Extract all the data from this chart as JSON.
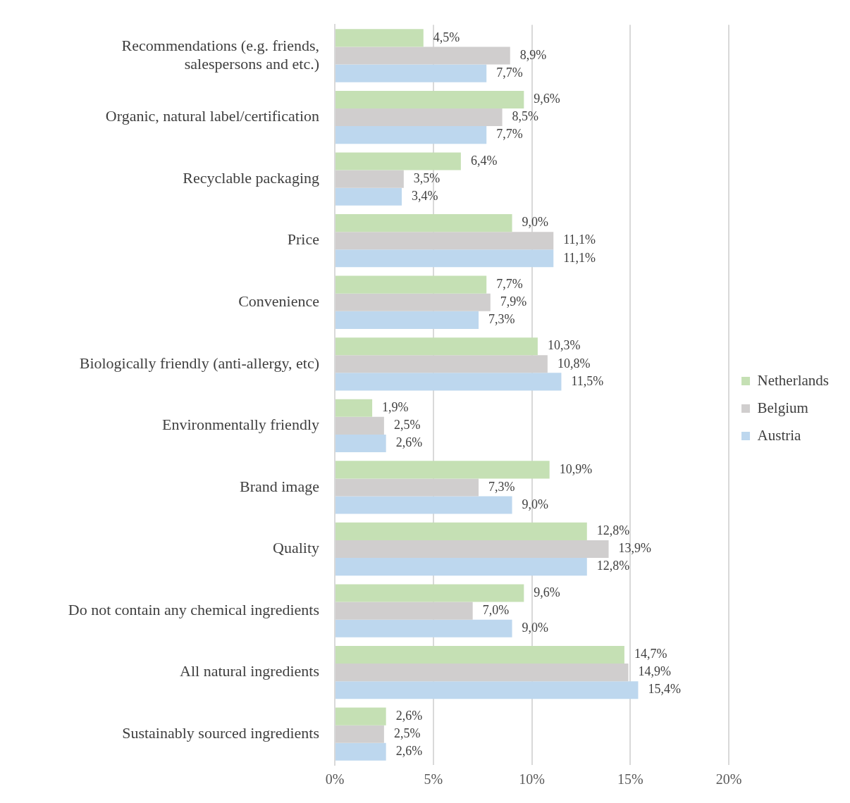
{
  "chart_data": {
    "type": "bar",
    "orientation": "horizontal",
    "categories": [
      "Recommendations (e.g. friends, salespersons and etc.)",
      "Organic, natural label/certification",
      "Recyclable packaging",
      "Price",
      "Convenience",
      "Biologically friendly (anti-allergy, etc)",
      "Environmentally friendly",
      "Brand image",
      "Quality",
      "Do not contain any chemical ingredients",
      "All natural ingredients",
      "Sustainably sourced ingredients"
    ],
    "series": [
      {
        "name": "Netherlands",
        "color": "#c5e0b4",
        "values": [
          4.5,
          9.6,
          6.4,
          9.0,
          7.7,
          10.3,
          1.9,
          10.9,
          12.8,
          9.6,
          14.7,
          2.6
        ],
        "value_labels": [
          "4,5%",
          "9,6%",
          "6,4%",
          "9,0%",
          "7,7%",
          "10,3%",
          "1,9%",
          "10,9%",
          "12,8%",
          "9,6%",
          "14,7%",
          "2,6%"
        ]
      },
      {
        "name": "Belgium",
        "color": "#d0cece",
        "values": [
          8.9,
          8.5,
          3.5,
          11.1,
          7.9,
          10.8,
          2.5,
          7.3,
          13.9,
          7.0,
          14.9,
          2.5
        ],
        "value_labels": [
          "8,9%",
          "8,5%",
          "3,5%",
          "11,1%",
          "7,9%",
          "10,8%",
          "2,5%",
          "7,3%",
          "13,9%",
          "7,0%",
          "14,9%",
          "2,5%"
        ]
      },
      {
        "name": "Austria",
        "color": "#bdd7ee",
        "values": [
          7.7,
          7.7,
          3.4,
          11.1,
          7.3,
          11.5,
          2.6,
          9.0,
          12.8,
          9.0,
          15.4,
          2.6
        ],
        "value_labels": [
          "7,7%",
          "7,7%",
          "3,4%",
          "11,1%",
          "7,3%",
          "11,5%",
          "2,6%",
          "9,0%",
          "12,8%",
          "9,0%",
          "15,4%",
          "2,6%"
        ]
      }
    ],
    "xlim": [
      0,
      20
    ],
    "xticks": [
      {
        "value": 0,
        "label": "0%"
      },
      {
        "value": 5,
        "label": "5%"
      },
      {
        "value": 10,
        "label": "10%"
      },
      {
        "value": 15,
        "label": "15%"
      },
      {
        "value": 20,
        "label": "20%"
      }
    ],
    "grid": "x",
    "legend": "right"
  }
}
